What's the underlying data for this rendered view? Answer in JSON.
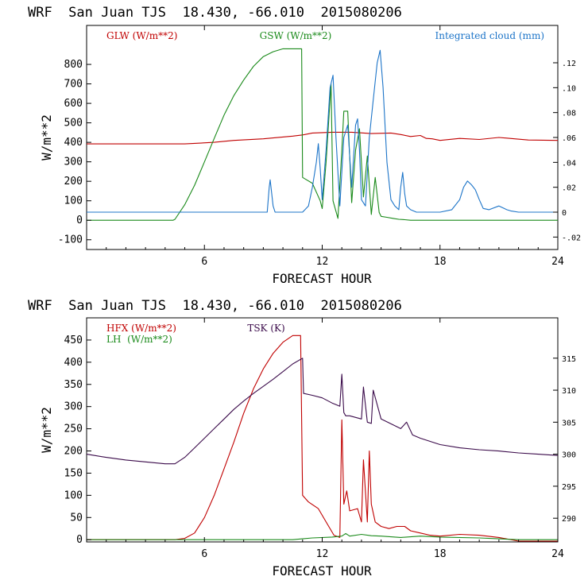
{
  "chart_data": [
    {
      "type": "line",
      "title": "WRF  San Juan TJS  18.430, -66.010  2015080206",
      "xlabel": "FORECAST HOUR",
      "ylabel": "W/m**2",
      "xlim": [
        0,
        24
      ],
      "ylim": [
        -150,
        1000
      ],
      "y2lim": [
        -0.03,
        0.15
      ],
      "xticks": [
        {
          "v": 6,
          "label": "6"
        },
        {
          "v": 12,
          "label": "12"
        },
        {
          "v": 18,
          "label": "18"
        },
        {
          "v": 24,
          "label": "24"
        }
      ],
      "yticks": [
        {
          "v": -100,
          "label": "-100"
        },
        {
          "v": 0,
          "label": "0"
        },
        {
          "v": 100,
          "label": "100"
        },
        {
          "v": 200,
          "label": "200"
        },
        {
          "v": 300,
          "label": "300"
        },
        {
          "v": 400,
          "label": "400"
        },
        {
          "v": 500,
          "label": "500"
        },
        {
          "v": 600,
          "label": "600"
        },
        {
          "v": 700,
          "label": "700"
        },
        {
          "v": 800,
          "label": "800"
        }
      ],
      "y2ticks": [
        {
          "v": -0.02,
          "label": "-.02"
        },
        {
          "v": 0,
          "label": "0"
        },
        {
          "v": 0.02,
          "label": ".02"
        },
        {
          "v": 0.04,
          "label": ".04"
        },
        {
          "v": 0.06,
          "label": ".06"
        },
        {
          "v": 0.08,
          "label": ".08"
        },
        {
          "v": 0.1,
          "label": ".10"
        },
        {
          "v": 0.12,
          "label": ".12"
        }
      ],
      "series": [
        {
          "name": "GLW (W/m**2)",
          "color": "#c00000",
          "axis": "left",
          "x": [
            0,
            5.0,
            6.5,
            7.5,
            9,
            10.5,
            11.0,
            11.5,
            12.5,
            13.5,
            14.5,
            15.5,
            16.0,
            16.5,
            17.0,
            17.3,
            17.6,
            18.0,
            19.0,
            20.0,
            21.0,
            21.8,
            22.5,
            24
          ],
          "y": [
            392,
            392,
            400,
            410,
            418,
            432,
            438,
            448,
            452,
            452,
            445,
            448,
            440,
            430,
            435,
            420,
            418,
            410,
            420,
            415,
            425,
            418,
            412,
            410
          ]
        },
        {
          "name": "GSW (W/m**2)",
          "color": "#1a8a1a",
          "axis": "left",
          "x": [
            0,
            4.4,
            4.5,
            5.0,
            5.5,
            6.0,
            6.5,
            7.0,
            7.5,
            8.0,
            8.5,
            9.0,
            9.5,
            10.0,
            10.5,
            10.95,
            11.0,
            11.5,
            11.9,
            12.0,
            12.2,
            12.45,
            12.55,
            12.8,
            13.0,
            13.1,
            13.3,
            13.5,
            13.7,
            13.9,
            14.1,
            14.3,
            14.5,
            14.7,
            14.9,
            15.0,
            15.3,
            15.6,
            15.9,
            16.2,
            16.5,
            24
          ],
          "y": [
            0,
            0,
            5,
            80,
            180,
            300,
            420,
            540,
            640,
            720,
            790,
            840,
            865,
            880,
            880,
            880,
            220,
            190,
            100,
            60,
            300,
            700,
            100,
            10,
            360,
            560,
            560,
            90,
            360,
            470,
            120,
            330,
            30,
            220,
            40,
            20,
            15,
            10,
            5,
            3,
            0,
            0
          ]
        },
        {
          "name": "Integrated cloud (mm)",
          "color": "#1c74c8",
          "axis": "right",
          "x": [
            0,
            9.2,
            9.3,
            9.35,
            9.5,
            9.6,
            10,
            11.0,
            11.3,
            11.5,
            11.7,
            11.8,
            11.9,
            12.0,
            12.2,
            12.4,
            12.55,
            12.7,
            12.9,
            13.1,
            13.3,
            13.5,
            13.7,
            13.8,
            13.9,
            14.0,
            14.2,
            14.4,
            14.6,
            14.8,
            14.95,
            15.1,
            15.3,
            15.5,
            15.7,
            15.9,
            16.0,
            16.1,
            16.2,
            16.3,
            16.5,
            16.8,
            17.2,
            18.0,
            18.6,
            19.0,
            19.2,
            19.4,
            19.6,
            19.8,
            20.0,
            20.2,
            20.5,
            21.0,
            21.4,
            21.6,
            22,
            24
          ],
          "y": [
            0,
            0,
            0.02,
            0.026,
            0.005,
            0,
            0,
            0,
            0.005,
            0.02,
            0.04,
            0.055,
            0.035,
            0.01,
            0.05,
            0.1,
            0.11,
            0.06,
            0.005,
            0.06,
            0.07,
            0.02,
            0.07,
            0.075,
            0.05,
            0.01,
            0.005,
            0.06,
            0.09,
            0.12,
            0.13,
            0.1,
            0.04,
            0.01,
            0.005,
            0.002,
            0.02,
            0.032,
            0.015,
            0.005,
            0.002,
            0,
            0,
            0,
            0.002,
            0.01,
            0.02,
            0.025,
            0.022,
            0.018,
            0.01,
            0.003,
            0.002,
            0.005,
            0.002,
            0.001,
            0,
            0
          ]
        }
      ],
      "legend": [
        {
          "label": "GLW (W/m**2)",
          "color": "#c00000",
          "anchor": "left"
        },
        {
          "label": "GSW (W/m**2)",
          "color": "#1a8a1a",
          "anchor": "center"
        },
        {
          "label": "Integrated cloud (mm)",
          "color": "#1c74c8",
          "anchor": "right"
        }
      ]
    },
    {
      "type": "line",
      "title": "WRF  San Juan TJS  18.430, -66.010  2015080206",
      "xlabel": "FORECAST HOUR",
      "ylabel": "W/m**2",
      "xlim": [
        0,
        24
      ],
      "ylim": [
        -5,
        500
      ],
      "y2lim": [
        286.3,
        321.3
      ],
      "xticks": [
        {
          "v": 6,
          "label": "6"
        },
        {
          "v": 12,
          "label": "12"
        },
        {
          "v": 18,
          "label": "18"
        },
        {
          "v": 24,
          "label": "24"
        }
      ],
      "yticks": [
        {
          "v": 0,
          "label": "0"
        },
        {
          "v": 50,
          "label": "50"
        },
        {
          "v": 100,
          "label": "100"
        },
        {
          "v": 150,
          "label": "150"
        },
        {
          "v": 200,
          "label": "200"
        },
        {
          "v": 250,
          "label": "250"
        },
        {
          "v": 300,
          "label": "300"
        },
        {
          "v": 350,
          "label": "350"
        },
        {
          "v": 400,
          "label": "400"
        },
        {
          "v": 450,
          "label": "450"
        }
      ],
      "y2ticks": [
        {
          "v": 290,
          "label": "290"
        },
        {
          "v": 295,
          "label": "295"
        },
        {
          "v": 300,
          "label": "300"
        },
        {
          "v": 305,
          "label": "305"
        },
        {
          "v": 310,
          "label": "310"
        },
        {
          "v": 315,
          "label": "315"
        }
      ],
      "series": [
        {
          "name": "HFX (W/m**2)",
          "color": "#c00000",
          "axis": "left",
          "x": [
            0,
            4.5,
            5.0,
            5.5,
            6.0,
            6.5,
            7.0,
            7.5,
            8.0,
            8.5,
            9.0,
            9.5,
            10.0,
            10.5,
            10.9,
            11.0,
            11.3,
            11.8,
            12.2,
            12.6,
            12.9,
            13.0,
            13.1,
            13.25,
            13.4,
            13.8,
            14.0,
            14.1,
            14.3,
            14.4,
            14.5,
            14.7,
            15.0,
            15.4,
            15.8,
            16.0,
            16.2,
            16.5,
            17.0,
            17.5,
            18.0,
            19.0,
            20.0,
            21.0,
            22.0,
            23.0,
            24
          ],
          "y": [
            0,
            0,
            3,
            15,
            50,
            100,
            160,
            220,
            285,
            340,
            385,
            420,
            445,
            460,
            460,
            100,
            85,
            70,
            40,
            10,
            5,
            270,
            80,
            110,
            65,
            70,
            40,
            180,
            40,
            200,
            80,
            40,
            30,
            25,
            30,
            30,
            30,
            20,
            15,
            10,
            8,
            12,
            10,
            5,
            -5,
            -8,
            -10
          ]
        },
        {
          "name": "LH (W/m**2)",
          "color": "#1a8a1a",
          "axis": "left",
          "x": [
            0,
            10.5,
            11.5,
            12.5,
            13.0,
            13.2,
            13.4,
            14.0,
            14.5,
            15.0,
            16.0,
            17.0,
            18.0,
            20.0,
            21.0,
            22.0,
            24
          ],
          "y": [
            0,
            0,
            4,
            6,
            8,
            14,
            8,
            12,
            9,
            8,
            5,
            8,
            6,
            4,
            2,
            0,
            0
          ]
        },
        {
          "name": "TSK (K)",
          "color": "#3a0a4a",
          "axis": "right",
          "x": [
            0,
            1,
            2,
            3,
            4.0,
            4.5,
            5.0,
            5.5,
            6.0,
            6.5,
            7.0,
            7.5,
            8.0,
            8.5,
            9.0,
            9.5,
            10.0,
            10.5,
            11.0,
            11.05,
            11.5,
            12.0,
            12.5,
            12.9,
            13.0,
            13.1,
            13.2,
            13.4,
            14.0,
            14.1,
            14.3,
            14.5,
            14.6,
            15.0,
            16.0,
            16.3,
            16.6,
            17.0,
            18.0,
            19.0,
            20.0,
            21.0,
            22.0,
            23.0,
            24
          ],
          "y": [
            300.0,
            299.5,
            299.1,
            298.8,
            298.5,
            298.5,
            299.5,
            301.0,
            302.5,
            304.0,
            305.5,
            307.0,
            308.3,
            309.5,
            310.6,
            311.7,
            312.9,
            314.1,
            315.0,
            309.5,
            309.2,
            308.8,
            308.0,
            307.5,
            312.5,
            306.5,
            306.0,
            306.0,
            305.5,
            310.5,
            305.0,
            304.8,
            310.0,
            305.5,
            304.0,
            305.0,
            303.0,
            302.5,
            301.5,
            301.0,
            300.7,
            300.5,
            300.2,
            300.0,
            299.8
          ]
        }
      ],
      "legend": [
        {
          "label": "HFX (W/m**2)",
          "color": "#c00000",
          "anchor": "left"
        },
        {
          "label": "LH  (W/m**2)",
          "color": "#1a8a1a",
          "anchor": "left"
        },
        {
          "label": "TSK (K)",
          "color": "#3a0a4a",
          "anchor": "center"
        }
      ]
    }
  ]
}
